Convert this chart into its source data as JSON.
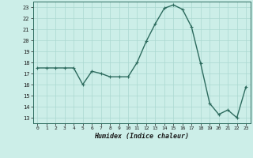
{
  "x": [
    0,
    1,
    2,
    3,
    4,
    5,
    6,
    7,
    8,
    9,
    10,
    11,
    12,
    13,
    14,
    15,
    16,
    17,
    18,
    19,
    20,
    21,
    22,
    23
  ],
  "y": [
    17.5,
    17.5,
    17.5,
    17.5,
    17.5,
    16.0,
    17.2,
    17.0,
    16.7,
    16.7,
    16.7,
    18.0,
    19.9,
    21.5,
    22.9,
    23.2,
    22.8,
    21.2,
    17.9,
    14.3,
    13.3,
    13.7,
    13.0,
    15.8
  ],
  "line_color": "#2d6b5e",
  "marker": "+",
  "marker_size": 3,
  "xlabel": "Humidex (Indice chaleur)",
  "xlim": [
    -0.5,
    23.5
  ],
  "ylim": [
    12.5,
    23.5
  ],
  "yticks": [
    13,
    14,
    15,
    16,
    17,
    18,
    19,
    20,
    21,
    22,
    23
  ],
  "xticks": [
    0,
    1,
    2,
    3,
    4,
    5,
    6,
    7,
    8,
    9,
    10,
    11,
    12,
    13,
    14,
    15,
    16,
    17,
    18,
    19,
    20,
    21,
    22,
    23
  ],
  "bg_color": "#cceee8",
  "grid_color": "#aad8d0",
  "line_width": 1.0
}
